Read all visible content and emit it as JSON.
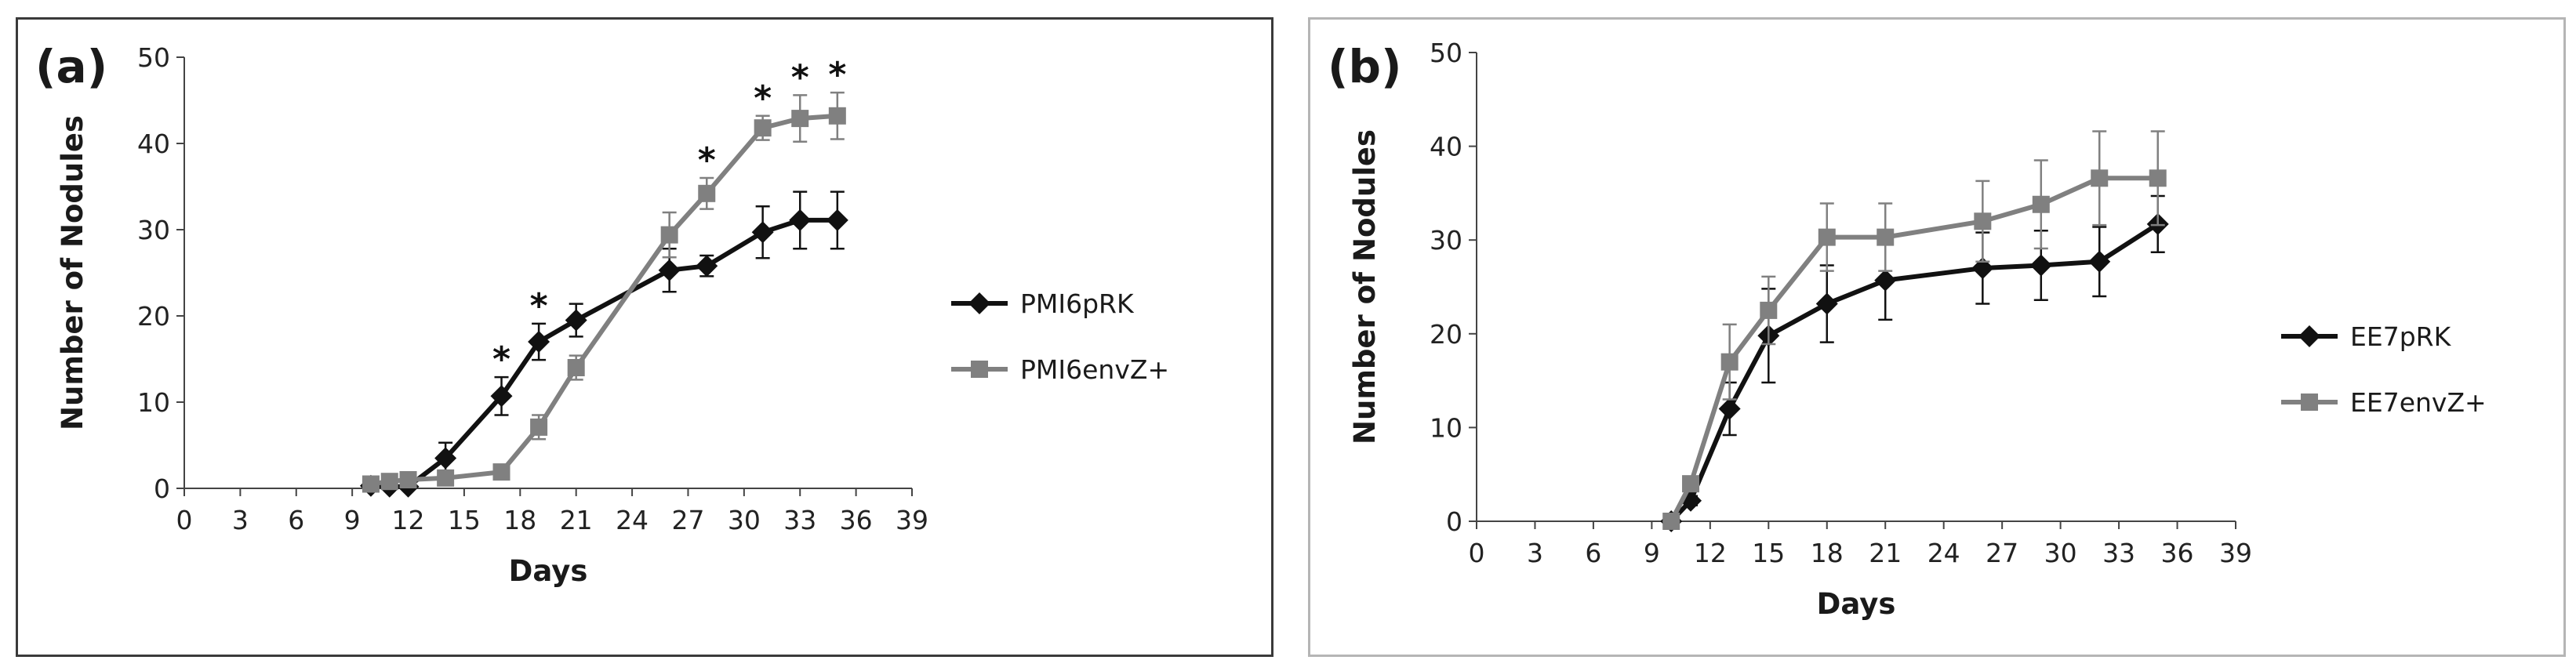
{
  "chart_data": [
    {
      "type": "line",
      "panel_label": "(a)",
      "xlabel": "Days",
      "ylabel": "Number of Nodules",
      "xlim": [
        0,
        39
      ],
      "ylim": [
        0,
        50
      ],
      "xticks": [
        0,
        3,
        6,
        9,
        12,
        15,
        18,
        21,
        24,
        27,
        30,
        33,
        36,
        39
      ],
      "yticks": [
        0,
        10,
        20,
        30,
        40,
        50
      ],
      "legend_position": "right",
      "series": [
        {
          "name": "PMI6pRK",
          "color": "#111111",
          "marker": "diamond",
          "x": [
            10,
            11,
            12,
            14,
            17,
            19,
            21,
            26,
            28,
            31,
            33,
            35
          ],
          "y": [
            0.3,
            0.2,
            0.2,
            3.5,
            10.7,
            17.0,
            19.5,
            25.3,
            25.8,
            29.7,
            31.1,
            31.1
          ],
          "err": [
            0,
            0,
            0,
            1.8,
            2.2,
            2.1,
            1.9,
            2.5,
            1.2,
            3.0,
            3.3,
            3.3
          ]
        },
        {
          "name": "PMI6envZ+",
          "color": "#808080",
          "marker": "square",
          "x": [
            10,
            11,
            12,
            14,
            17,
            19,
            21,
            26,
            28,
            31,
            33,
            35
          ],
          "y": [
            0.5,
            0.8,
            1.0,
            1.2,
            1.9,
            7.1,
            14.0,
            29.4,
            34.2,
            41.8,
            42.9,
            43.2
          ],
          "err": [
            0,
            0,
            0,
            0.5,
            0.8,
            1.4,
            1.4,
            2.6,
            1.8,
            1.4,
            2.7,
            2.7
          ]
        }
      ],
      "significance_marks": [
        {
          "x": 17,
          "label": "*"
        },
        {
          "x": 19,
          "label": "*"
        },
        {
          "x": 28,
          "label": "*"
        },
        {
          "x": 31,
          "label": "*"
        },
        {
          "x": 33,
          "label": "*"
        },
        {
          "x": 35,
          "label": "*"
        }
      ]
    },
    {
      "type": "line",
      "panel_label": "(b)",
      "xlabel": "Days",
      "ylabel": "Number of Nodules",
      "xlim": [
        0,
        39
      ],
      "ylim": [
        0,
        50
      ],
      "xticks": [
        0,
        3,
        6,
        9,
        12,
        15,
        18,
        21,
        24,
        27,
        30,
        33,
        36,
        39
      ],
      "yticks": [
        0,
        10,
        20,
        30,
        40,
        50
      ],
      "legend_position": "right",
      "series": [
        {
          "name": "EE7pRK",
          "color": "#111111",
          "marker": "diamond",
          "x": [
            10,
            11,
            13,
            15,
            18,
            21,
            26,
            29,
            32,
            35
          ],
          "y": [
            0,
            2.2,
            12.0,
            19.8,
            23.2,
            25.7,
            27.0,
            27.3,
            27.7,
            31.7
          ],
          "err": [
            0,
            0.5,
            2.8,
            5.0,
            4.1,
            4.2,
            3.8,
            3.7,
            3.7,
            3.0
          ]
        },
        {
          "name": "EE7envZ+",
          "color": "#808080",
          "marker": "square",
          "x": [
            10,
            11,
            13,
            15,
            18,
            21,
            26,
            29,
            32,
            35
          ],
          "y": [
            0,
            4.0,
            17.0,
            22.5,
            30.3,
            30.3,
            32.0,
            33.8,
            36.6,
            36.6
          ],
          "err": [
            0,
            0.4,
            4.0,
            3.6,
            3.6,
            3.6,
            4.3,
            4.7,
            5.0,
            5.0
          ]
        }
      ]
    }
  ]
}
